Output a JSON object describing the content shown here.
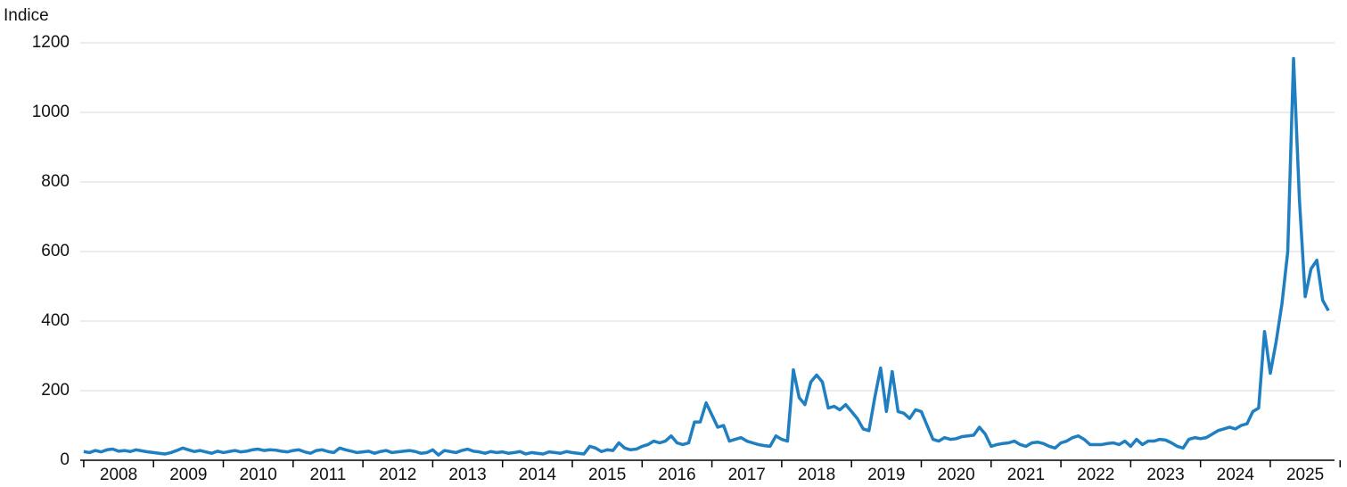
{
  "chart_data": {
    "type": "line",
    "y_label": "Indice",
    "xlim": [
      2007.95,
      2025.92
    ],
    "ylim": [
      0,
      1200
    ],
    "yticks": [
      0,
      200,
      400,
      600,
      800,
      1000,
      1200
    ],
    "xticks": [
      {
        "value": 2008.5,
        "label": "2008"
      },
      {
        "value": 2009.5,
        "label": "2009"
      },
      {
        "value": 2010.5,
        "label": "2010"
      },
      {
        "value": 2011.5,
        "label": "2011"
      },
      {
        "value": 2012.5,
        "label": "2012"
      },
      {
        "value": 2013.5,
        "label": "2013"
      },
      {
        "value": 2014.5,
        "label": "2014"
      },
      {
        "value": 2015.5,
        "label": "2015"
      },
      {
        "value": 2016.5,
        "label": "2016"
      },
      {
        "value": 2017.5,
        "label": "2017"
      },
      {
        "value": 2018.5,
        "label": "2018"
      },
      {
        "value": 2019.5,
        "label": "2019"
      },
      {
        "value": 2020.5,
        "label": "2020"
      },
      {
        "value": 2021.5,
        "label": "2021"
      },
      {
        "value": 2022.5,
        "label": "2022"
      },
      {
        "value": 2023.5,
        "label": "2023"
      },
      {
        "value": 2024.5,
        "label": "2024"
      },
      {
        "value": 2025.5,
        "label": "2025"
      }
    ],
    "grid": true,
    "x": [
      2008.0,
      2008.083,
      2008.167,
      2008.25,
      2008.333,
      2008.417,
      2008.5,
      2008.583,
      2008.667,
      2008.75,
      2008.833,
      2008.917,
      2009.0,
      2009.083,
      2009.167,
      2009.25,
      2009.333,
      2009.417,
      2009.5,
      2009.583,
      2009.667,
      2009.75,
      2009.833,
      2009.917,
      2010.0,
      2010.083,
      2010.167,
      2010.25,
      2010.333,
      2010.417,
      2010.5,
      2010.583,
      2010.667,
      2010.75,
      2010.833,
      2010.917,
      2011.0,
      2011.083,
      2011.167,
      2011.25,
      2011.333,
      2011.417,
      2011.5,
      2011.583,
      2011.667,
      2011.75,
      2011.833,
      2011.917,
      2012.0,
      2012.083,
      2012.167,
      2012.25,
      2012.333,
      2012.417,
      2012.5,
      2012.583,
      2012.667,
      2012.75,
      2012.833,
      2012.917,
      2013.0,
      2013.083,
      2013.167,
      2013.25,
      2013.333,
      2013.417,
      2013.5,
      2013.583,
      2013.667,
      2013.75,
      2013.833,
      2013.917,
      2014.0,
      2014.083,
      2014.167,
      2014.25,
      2014.333,
      2014.417,
      2014.5,
      2014.583,
      2014.667,
      2014.75,
      2014.833,
      2014.917,
      2015.0,
      2015.083,
      2015.167,
      2015.25,
      2015.333,
      2015.417,
      2015.5,
      2015.583,
      2015.667,
      2015.75,
      2015.833,
      2015.917,
      2016.0,
      2016.083,
      2016.167,
      2016.25,
      2016.333,
      2016.417,
      2016.5,
      2016.583,
      2016.667,
      2016.75,
      2016.833,
      2016.917,
      2017.0,
      2017.083,
      2017.167,
      2017.25,
      2017.333,
      2017.417,
      2017.5,
      2017.583,
      2017.667,
      2017.75,
      2017.833,
      2017.917,
      2018.0,
      2018.083,
      2018.167,
      2018.25,
      2018.333,
      2018.417,
      2018.5,
      2018.583,
      2018.667,
      2018.75,
      2018.833,
      2018.917,
      2019.0,
      2019.083,
      2019.167,
      2019.25,
      2019.333,
      2019.417,
      2019.5,
      2019.583,
      2019.667,
      2019.75,
      2019.833,
      2019.917,
      2020.0,
      2020.083,
      2020.167,
      2020.25,
      2020.333,
      2020.417,
      2020.5,
      2020.583,
      2020.667,
      2020.75,
      2020.833,
      2020.917,
      2021.0,
      2021.083,
      2021.167,
      2021.25,
      2021.333,
      2021.417,
      2021.5,
      2021.583,
      2021.667,
      2021.75,
      2021.833,
      2021.917,
      2022.0,
      2022.083,
      2022.167,
      2022.25,
      2022.333,
      2022.417,
      2022.5,
      2022.583,
      2022.667,
      2022.75,
      2022.833,
      2022.917,
      2023.0,
      2023.083,
      2023.167,
      2023.25,
      2023.333,
      2023.417,
      2023.5,
      2023.583,
      2023.667,
      2023.75,
      2023.833,
      2023.917,
      2024.0,
      2024.083,
      2024.167,
      2024.25,
      2024.333,
      2024.417,
      2024.5,
      2024.583,
      2024.667,
      2024.75,
      2024.833,
      2024.917,
      2025.0,
      2025.083,
      2025.167,
      2025.25,
      2025.333,
      2025.417,
      2025.5,
      2025.583,
      2025.667,
      2025.75,
      2025.833
    ],
    "series": [
      {
        "color": "#1f7fc1",
        "values": [
          25,
          22,
          28,
          24,
          30,
          32,
          26,
          28,
          25,
          30,
          27,
          24,
          22,
          20,
          18,
          22,
          28,
          35,
          30,
          25,
          28,
          24,
          20,
          26,
          22,
          25,
          28,
          24,
          26,
          30,
          32,
          28,
          30,
          29,
          26,
          24,
          28,
          30,
          24,
          20,
          28,
          30,
          25,
          22,
          35,
          30,
          26,
          22,
          24,
          26,
          20,
          25,
          28,
          22,
          24,
          26,
          28,
          25,
          20,
          22,
          30,
          15,
          28,
          25,
          22,
          28,
          32,
          26,
          24,
          20,
          25,
          22,
          24,
          20,
          22,
          25,
          18,
          22,
          20,
          18,
          24,
          22,
          20,
          25,
          22,
          20,
          18,
          40,
          35,
          25,
          30,
          28,
          50,
          35,
          30,
          32,
          40,
          45,
          55,
          50,
          55,
          70,
          50,
          45,
          50,
          110,
          110,
          165,
          130,
          95,
          100,
          55,
          60,
          65,
          55,
          50,
          45,
          42,
          40,
          70,
          60,
          55,
          260,
          180,
          160,
          225,
          245,
          225,
          150,
          155,
          145,
          160,
          140,
          120,
          90,
          85,
          180,
          265,
          140,
          255,
          140,
          135,
          120,
          145,
          140,
          100,
          60,
          55,
          65,
          60,
          62,
          68,
          70,
          72,
          95,
          75,
          40,
          45,
          48,
          50,
          55,
          45,
          40,
          50,
          52,
          48,
          40,
          35,
          50,
          55,
          65,
          70,
          60,
          45,
          45,
          45,
          48,
          50,
          45,
          55,
          40,
          60,
          45,
          55,
          55,
          60,
          58,
          50,
          40,
          35,
          60,
          65,
          62,
          65,
          75,
          85,
          90,
          95,
          90,
          100,
          105,
          140,
          150,
          370,
          250,
          340,
          450,
          600,
          1155,
          750,
          470,
          550,
          575,
          460,
          430
        ]
      }
    ]
  }
}
